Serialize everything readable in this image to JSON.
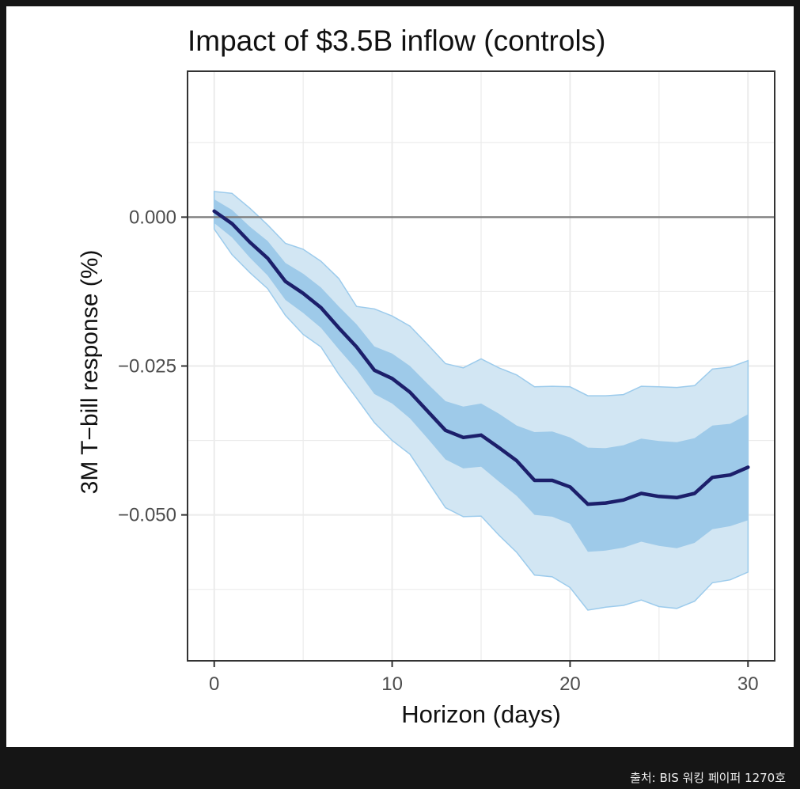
{
  "chart_data": {
    "type": "area",
    "title": "Impact of $3.5B inflow (controls)",
    "xlabel": "Horizon (days)",
    "ylabel": "3M T−bill response (%)",
    "xlim": [
      -1.5,
      31.5
    ],
    "ylim": [
      -0.0745,
      0.0245
    ],
    "xticks": [
      0,
      10,
      20,
      30
    ],
    "xtick_labels": [
      "0",
      "10",
      "20",
      "30"
    ],
    "yticks": [
      0.0,
      -0.025,
      -0.05
    ],
    "ytick_labels": [
      "0.000",
      "−0.025",
      "−0.050"
    ],
    "grid": true,
    "zero_line": 0.0,
    "x": [
      0,
      1,
      2,
      3,
      4,
      5,
      6,
      7,
      8,
      9,
      10,
      11,
      12,
      13,
      14,
      15,
      16,
      17,
      18,
      19,
      20,
      21,
      22,
      23,
      24,
      25,
      26,
      27,
      28,
      29,
      30
    ],
    "series": [
      {
        "values": [
          0.001,
          -0.0011,
          -0.0042,
          -0.0069,
          -0.0108,
          -0.0128,
          -0.0152,
          -0.0186,
          -0.0218,
          -0.0257,
          -0.0271,
          -0.0294,
          -0.0326,
          -0.0358,
          -0.037,
          -0.0366,
          -0.0387,
          -0.0409,
          -0.0442,
          -0.0442,
          -0.0453,
          -0.0482,
          -0.048,
          -0.0475,
          -0.0464,
          -0.0469,
          -0.0471,
          -0.0464,
          -0.0437,
          -0.0433,
          -0.042
        ]
      },
      {
        "band": "inner",
        "upper": [
          0.003,
          0.0012,
          -0.0016,
          -0.004,
          -0.0077,
          -0.0095,
          -0.0118,
          -0.015,
          -0.018,
          -0.0217,
          -0.0229,
          -0.025,
          -0.028,
          -0.0309,
          -0.0318,
          -0.0313,
          -0.033,
          -0.035,
          -0.0361,
          -0.036,
          -0.037,
          -0.0387,
          -0.0388,
          -0.0383,
          -0.0372,
          -0.0376,
          -0.0378,
          -0.0371,
          -0.035,
          -0.0347,
          -0.0331
        ],
        "lower": [
          -0.001,
          -0.0034,
          -0.0068,
          -0.0098,
          -0.0139,
          -0.0161,
          -0.0186,
          -0.0222,
          -0.0256,
          -0.0297,
          -0.0313,
          -0.0338,
          -0.0372,
          -0.0407,
          -0.0422,
          -0.0419,
          -0.0444,
          -0.0468,
          -0.05,
          -0.0503,
          -0.0515,
          -0.0562,
          -0.056,
          -0.0555,
          -0.0545,
          -0.0552,
          -0.0556,
          -0.0547,
          -0.0524,
          -0.0519,
          -0.0509
        ]
      },
      {
        "band": "outer",
        "upper": [
          0.0043,
          0.004,
          0.0015,
          -0.0013,
          -0.0044,
          -0.0054,
          -0.0074,
          -0.0103,
          -0.015,
          -0.0154,
          -0.0166,
          -0.0183,
          -0.0214,
          -0.0246,
          -0.0253,
          -0.0238,
          -0.0253,
          -0.0265,
          -0.0285,
          -0.0284,
          -0.0285,
          -0.03,
          -0.03,
          -0.0298,
          -0.0284,
          -0.0285,
          -0.0286,
          -0.0283,
          -0.0255,
          -0.0252,
          -0.0241
        ],
        "lower": [
          -0.002,
          -0.0063,
          -0.0093,
          -0.012,
          -0.0165,
          -0.0197,
          -0.0218,
          -0.0264,
          -0.0304,
          -0.0345,
          -0.0375,
          -0.0398,
          -0.0443,
          -0.0488,
          -0.0503,
          -0.0502,
          -0.0534,
          -0.0563,
          -0.0601,
          -0.0604,
          -0.0622,
          -0.066,
          -0.0655,
          -0.0652,
          -0.0643,
          -0.0654,
          -0.0657,
          -0.0645,
          -0.0614,
          -0.0609,
          -0.0596
        ]
      }
    ],
    "colors": {
      "line": "#1c1f6b",
      "inner_band": "#9ecae9",
      "outer_band": "#d2e6f3",
      "band_edge": "#9ccbec",
      "zero_line": "#7a7a7a",
      "grid": "#ebebeb",
      "frame": "#333333"
    }
  },
  "source": "출처: BIS 워킹 페이퍼 1270호"
}
